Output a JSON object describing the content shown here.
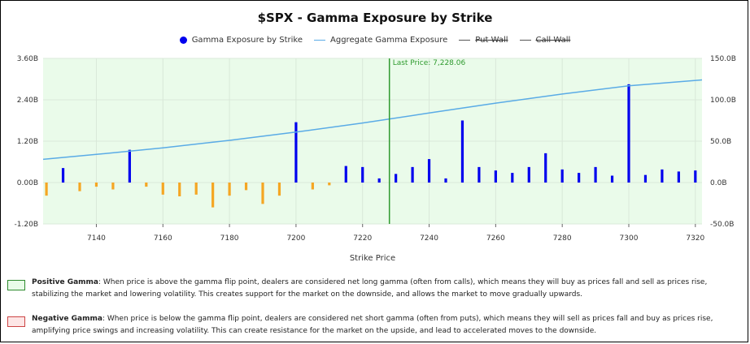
{
  "chart_data": {
    "type": "bar",
    "title": "$SPX - Gamma Exposure by Strike",
    "xlabel": "Strike Price",
    "ylabel": "",
    "ylim": [
      -1.2,
      3.6
    ],
    "y2lim": [
      -50,
      150
    ],
    "xlim": [
      7124,
      7322
    ],
    "x_ticks": [
      7140,
      7160,
      7180,
      7200,
      7220,
      7240,
      7260,
      7280,
      7300,
      7320
    ],
    "y_ticks": [
      -1.2,
      0,
      1.2,
      2.4,
      3.6
    ],
    "y_tick_labels": [
      "-1.20B",
      "0.00B",
      "1.20B",
      "2.40B",
      "3.60B"
    ],
    "y2_ticks": [
      -50,
      0,
      50,
      100,
      150
    ],
    "y2_tick_labels": [
      "-50.0B",
      "0.0B",
      "50.0B",
      "100.0B",
      "150.0B"
    ],
    "legend": [
      {
        "label": "Gamma Exposure by Strike",
        "marker": "dot",
        "color": "#0000ee",
        "struck": false
      },
      {
        "label": "Aggregate Gamma Exposure",
        "marker": "line",
        "color": "#5aabe6",
        "struck": false
      },
      {
        "label": "Put Wall",
        "marker": "line",
        "color": "#555555",
        "struck": true
      },
      {
        "label": "Call Wall",
        "marker": "line",
        "color": "#555555",
        "struck": true
      }
    ],
    "legend_position": "top-center",
    "last_price": {
      "label": "Last Price: 7,228.06",
      "x": 7228.06,
      "color": "#2e9a2e"
    },
    "positive_color": "#0000ee",
    "negative_color": "#f5a623",
    "plot_background": "#eafbea",
    "grid": true,
    "strikes": [
      7125,
      7130,
      7135,
      7140,
      7145,
      7150,
      7155,
      7160,
      7165,
      7170,
      7175,
      7180,
      7185,
      7190,
      7195,
      7200,
      7205,
      7210,
      7215,
      7220,
      7225,
      7230,
      7235,
      7240,
      7245,
      7250,
      7255,
      7260,
      7265,
      7270,
      7275,
      7280,
      7285,
      7290,
      7295,
      7300,
      7305,
      7310,
      7315,
      7320
    ],
    "values": [
      -0.38,
      0.42,
      -0.25,
      -0.12,
      -0.2,
      0.95,
      -0.12,
      -0.35,
      -0.4,
      -0.35,
      -0.72,
      -0.38,
      -0.22,
      -0.62,
      -0.38,
      1.75,
      -0.2,
      -0.08,
      0.48,
      0.45,
      0.12,
      0.25,
      0.45,
      0.68,
      0.12,
      1.8,
      0.45,
      0.35,
      0.28,
      0.45,
      0.85,
      0.38,
      0.28,
      0.45,
      0.2,
      2.85,
      0.22,
      0.38,
      0.32,
      0.35
    ],
    "aggregate": {
      "name": "Aggregate Gamma Exposure",
      "x": [
        7124,
        7140,
        7160,
        7180,
        7200,
        7220,
        7240,
        7260,
        7280,
        7300,
        7322
      ],
      "y": [
        28,
        34,
        42,
        51,
        61,
        72,
        84,
        96,
        107,
        117,
        124
      ]
    }
  },
  "notes": [
    {
      "title": "Positive Gamma",
      "text": ": When price is above the gamma flip point, dealers are considered net long gamma (often from calls), which means they will buy as prices fall and sell as prices rise, stabilizing the market and lowering volatility. This creates support for the market on the downside, and allows the market to move gradually upwards.",
      "color": "green"
    },
    {
      "title": "Negative Gamma",
      "text": ": When price is below the gamma flip point, dealers are considered net short gamma (often from puts), which means they will sell as prices fall and buy as prices rise, amplifying price swings and increasing volatility. This can create resistance for the market on the upside, and lead to accelerated moves to the downside.",
      "color": "red"
    }
  ]
}
